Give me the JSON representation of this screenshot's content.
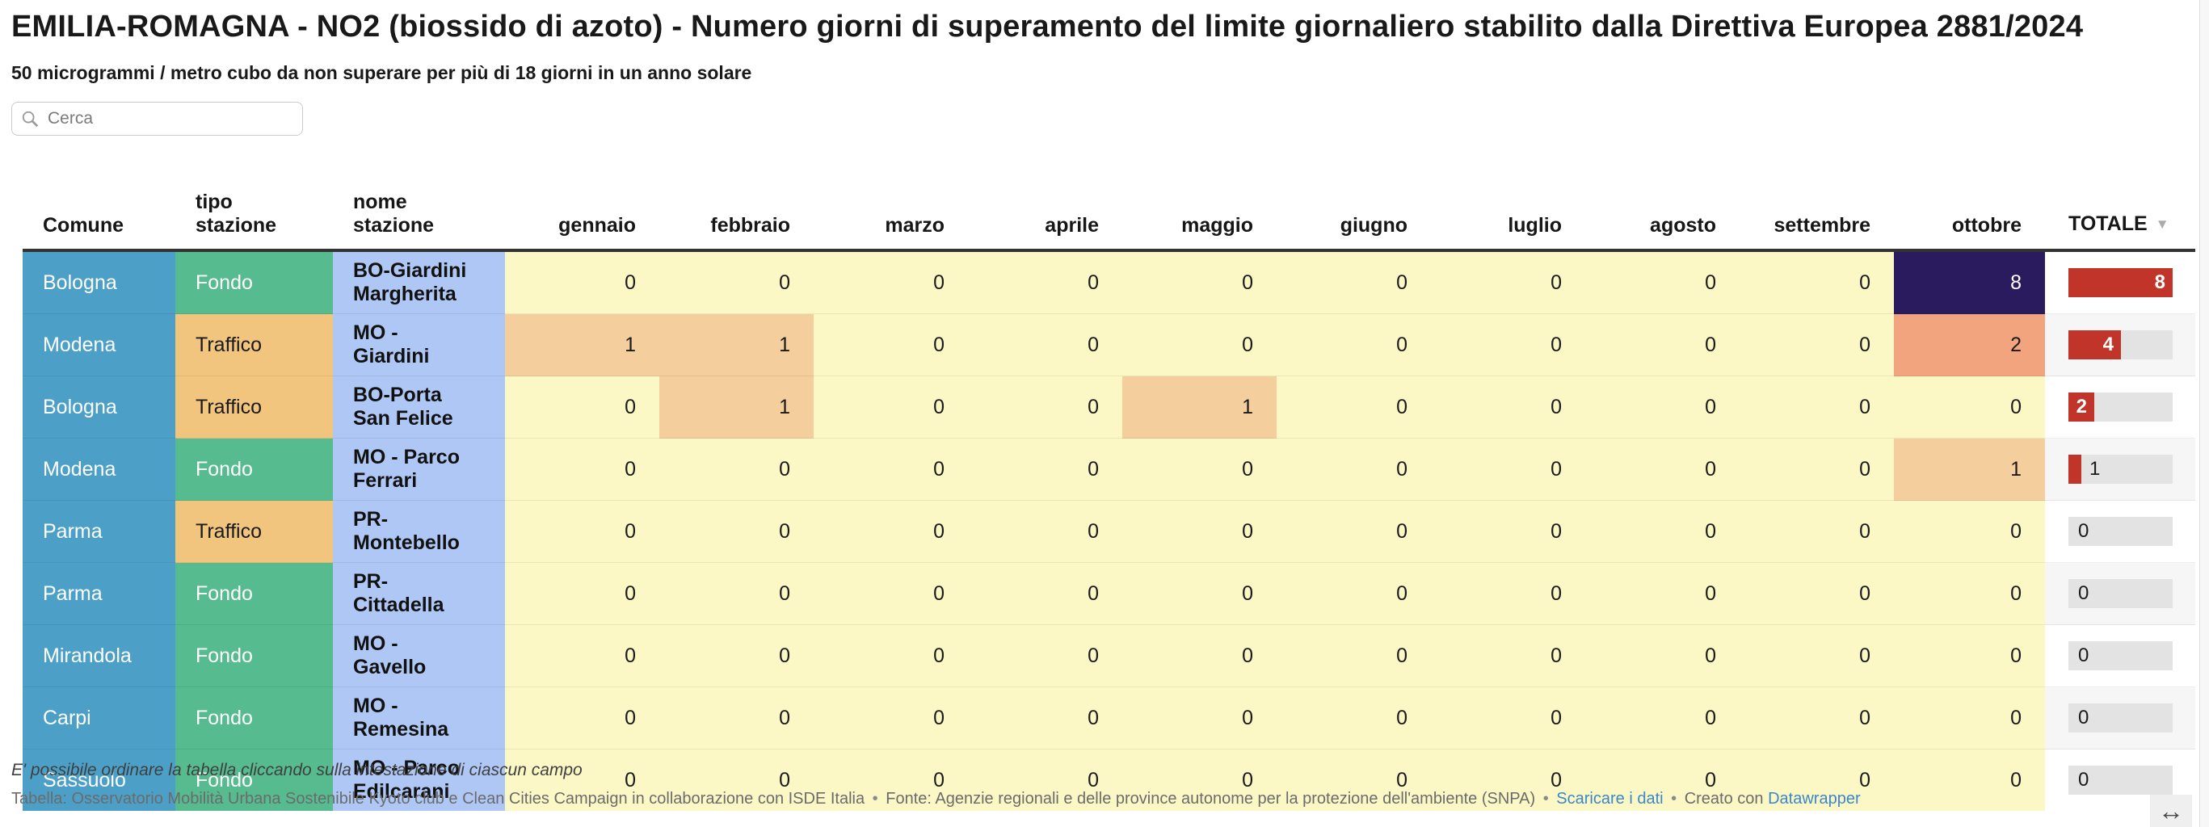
{
  "page": {
    "title": "EMILIA-ROMAGNA - NO2 (biossido di azoto) - Numero giorni di superamento del limite giornaliero stabilito dalla Direttiva Europea 2881/2024",
    "subtitle": "50 microgrammi / metro cubo da non superare per più di 18 giorni in un anno solare"
  },
  "search": {
    "placeholder": "Cerca"
  },
  "chart_data": {
    "type": "table",
    "columns": [
      "Comune",
      "tipo stazione",
      "nome stazione",
      "gennaio",
      "febbraio",
      "marzo",
      "aprile",
      "maggio",
      "giugno",
      "luglio",
      "agosto",
      "settembre",
      "ottobre",
      "TOTALE"
    ],
    "sort": {
      "column": "TOTALE",
      "direction": "desc"
    },
    "totale_max": 8,
    "rows": [
      {
        "comune": "Bologna",
        "tipo_stazione": "Fondo",
        "nome_stazione": "BO-Giardini Margherita",
        "monthly": [
          0,
          0,
          0,
          0,
          0,
          0,
          0,
          0,
          0,
          8
        ],
        "totale": 8
      },
      {
        "comune": "Modena",
        "tipo_stazione": "Traffico",
        "nome_stazione": "MO - Giardini",
        "monthly": [
          1,
          1,
          0,
          0,
          0,
          0,
          0,
          0,
          0,
          2
        ],
        "totale": 4
      },
      {
        "comune": "Bologna",
        "tipo_stazione": "Traffico",
        "nome_stazione": "BO-Porta San Felice",
        "monthly": [
          0,
          1,
          0,
          0,
          1,
          0,
          0,
          0,
          0,
          0
        ],
        "totale": 2
      },
      {
        "comune": "Modena",
        "tipo_stazione": "Fondo",
        "nome_stazione": "MO - Parco Ferrari",
        "monthly": [
          0,
          0,
          0,
          0,
          0,
          0,
          0,
          0,
          0,
          1
        ],
        "totale": 1
      },
      {
        "comune": "Parma",
        "tipo_stazione": "Traffico",
        "nome_stazione": "PR-Montebello",
        "monthly": [
          0,
          0,
          0,
          0,
          0,
          0,
          0,
          0,
          0,
          0
        ],
        "totale": 0
      },
      {
        "comune": "Parma",
        "tipo_stazione": "Fondo",
        "nome_stazione": "PR-Cittadella",
        "monthly": [
          0,
          0,
          0,
          0,
          0,
          0,
          0,
          0,
          0,
          0
        ],
        "totale": 0
      },
      {
        "comune": "Mirandola",
        "tipo_stazione": "Fondo",
        "nome_stazione": "MO - Gavello",
        "monthly": [
          0,
          0,
          0,
          0,
          0,
          0,
          0,
          0,
          0,
          0
        ],
        "totale": 0
      },
      {
        "comune": "Carpi",
        "tipo_stazione": "Fondo",
        "nome_stazione": "MO - Remesina",
        "monthly": [
          0,
          0,
          0,
          0,
          0,
          0,
          0,
          0,
          0,
          0
        ],
        "totale": 0
      },
      {
        "comune": "Sassuolo",
        "tipo_stazione": "Fondo",
        "nome_stazione": "MO - Parco Edilcarani",
        "monthly": [
          0,
          0,
          0,
          0,
          0,
          0,
          0,
          0,
          0,
          0
        ],
        "totale": 0
      }
    ]
  },
  "colors": {
    "comune_bg": "#4CA0C8",
    "comune_text": "#ffffff",
    "tipo": {
      "Fondo": {
        "bg": "#56BB8E",
        "text": "#ffffff"
      },
      "Traffico": {
        "bg": "#F1C57E",
        "text": "#1a1a1a"
      }
    },
    "nome_bg": "#AEC7F4",
    "value_scale": {
      "0": "#FBF8C6",
      "1": "#F4CE9D",
      "2": "#F2A47E",
      "8": "#2A1B5E"
    },
    "value_text_light_min": 4,
    "bar_fill": "#C0342A",
    "bar_track": "#E3E3E3",
    "stripe": "#F6F6F6"
  },
  "footer": {
    "note": "E' possibile ordinare la tabella cliccando sulla intestazione di ciascun campo",
    "credit_table": "Tabella: Osservatorio Mobilità Urbana Sostenibile Kyoto club e Clean Cities Campaign in collaborazione con ISDE Italia",
    "credit_source": "Fonte: Agenzie regionali e delle province autonome per la protezione dell'ambiente (SNPA)",
    "link_download": "Scaricare i dati",
    "created_with": "Creato con",
    "link_datawrapper": "Datawrapper",
    "separator": "•"
  },
  "misc": {
    "resize_handle": "↔",
    "sort_arrow": "▼"
  }
}
